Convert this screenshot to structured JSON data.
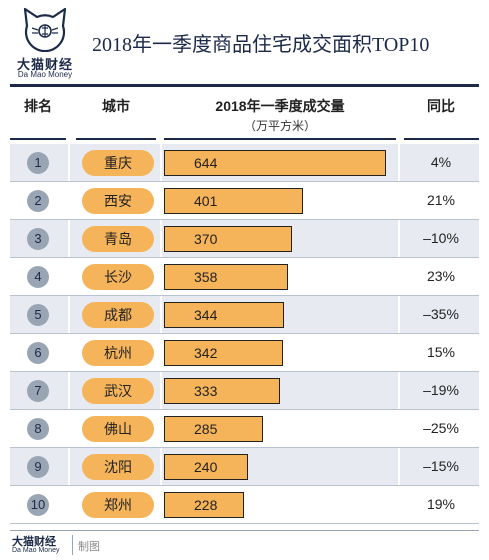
{
  "brand": {
    "name_cn": "大猫财经",
    "name_en": "Da Mao Money",
    "made_label": "制图"
  },
  "title": "2018年一季度商品住宅成交面积TOP10",
  "columns": {
    "rank": "排名",
    "city": "城市",
    "volume": "2018年一季度成交量",
    "volume_unit": "（万平方米）",
    "yoy": "同比"
  },
  "colors": {
    "navy": "#1c2a4a",
    "orange": "#f5b35a",
    "rank_circle": "#9aa5b4",
    "zebra": "#e7ebf1"
  },
  "chart_data": {
    "type": "bar",
    "orientation": "horizontal",
    "title": "2018年一季度商品住宅成交面积TOP10",
    "value_label": "2018年一季度成交量",
    "value_unit": "（万平方米）",
    "xlim": [
      0,
      644
    ],
    "rows": [
      {
        "rank": "1",
        "city": "重庆",
        "value": 644,
        "yoy": "4%"
      },
      {
        "rank": "2",
        "city": "西安",
        "value": 401,
        "yoy": "21%"
      },
      {
        "rank": "3",
        "city": "青岛",
        "value": 370,
        "yoy": "–10%"
      },
      {
        "rank": "4",
        "city": "长沙",
        "value": 358,
        "yoy": "23%"
      },
      {
        "rank": "5",
        "city": "成都",
        "value": 344,
        "yoy": "–35%"
      },
      {
        "rank": "6",
        "city": "杭州",
        "value": 342,
        "yoy": "15%"
      },
      {
        "rank": "7",
        "city": "武汉",
        "value": 333,
        "yoy": "–19%"
      },
      {
        "rank": "8",
        "city": "佛山",
        "value": 285,
        "yoy": "–25%"
      },
      {
        "rank": "9",
        "city": "沈阳",
        "value": 240,
        "yoy": "–15%"
      },
      {
        "rank": "10",
        "city": "郑州",
        "value": 228,
        "yoy": "19%"
      }
    ]
  }
}
